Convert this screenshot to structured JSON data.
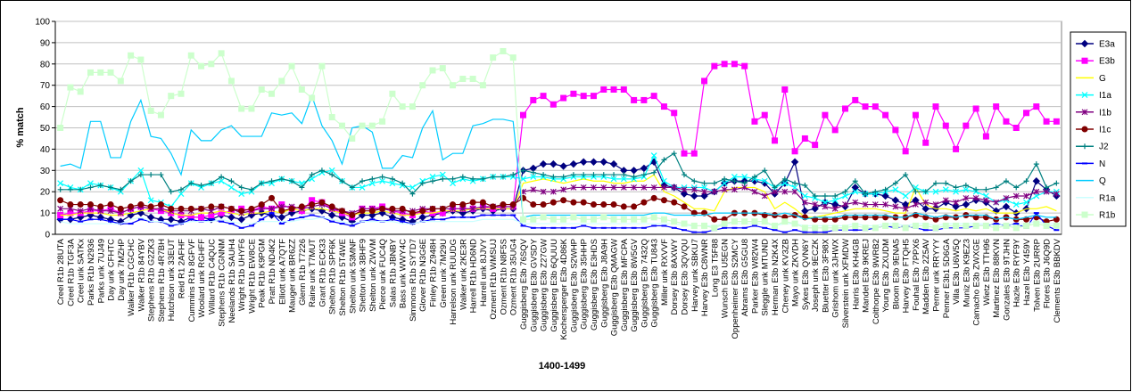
{
  "chart_data": {
    "type": "line",
    "x_label": "1400-1499",
    "y_label": "% match",
    "ylim": [
      0,
      100
    ],
    "yticks": [
      0,
      10,
      20,
      30,
      40,
      50,
      60,
      70,
      80,
      90,
      100
    ],
    "grid": true,
    "legend": "right",
    "categories": [
      "Creel R1b 28UTA",
      "Creel R1b TGF3A",
      "Creel unk SATKx",
      "Parks R1b N2936",
      "Parks unk 7UJ49",
      "Day unk CFHTC",
      "Day unk 7MZHP",
      "Walker R1b CGCHC",
      "Walker R1b 84YBV",
      "Stephens R1b G2ZK3",
      "Stephens R1b 4R7BH",
      "Hutchison unk 33EUT",
      "Reid R1 2AFHF",
      "Cummins R1b 8GFVF",
      "Woolard unk RGHFF",
      "Willard R1b C4QUC",
      "Stephens R1b CGNNM",
      "Neelands R1b SAUH4",
      "Wright R1b UHYF6",
      "Wright R1b EW8CE",
      "Peak R1b K9PGM",
      "Pratt R1b ND4K2",
      "Elliott unk A7QTF",
      "Mauger unk BR6ZZ",
      "Glenn R1b T7226",
      "Raine unk T7MUT",
      "Grant R1b ECK33",
      "Shelton R1b SPF6K",
      "Shelton R1b 5T4WE",
      "Shelton unk 53MNF",
      "Shelton unk 3BHF9",
      "Shelton unk ZWVM",
      "Pierce unk FUC4Q",
      "Salas R1b JBNBY",
      "Bass unk WWY4C",
      "Simmons R1b SYTD7",
      "Glover R1b N3G6E",
      "Finley R1b Z948H",
      "Green unk 7M29U",
      "Harrelson unk RUUDG",
      "Walker unk 2KE3R",
      "Harrell R1b HD6ND",
      "Harrell unk 8JJVY",
      "Ozment R1b WMSUJ",
      "Ozment R1b N8F5S",
      "Ozment R1b 35UG4",
      "Guggisberg E3b 76SQV",
      "Guggisberg E3b GVSDY",
      "Guggisberg E3b Z27GW",
      "Guggisberg E3b 6QUUU",
      "Kochersperger E3b 4D86K",
      "Guggisberg E3b S2WHP",
      "Guggisberg E3b 35HHP",
      "Guggisberg E3b E3HDS",
      "Guggisberg E3b J8A9H",
      "Guggisberg E3b QMAGW",
      "Guggisberg E3b MFCPA",
      "Guggisberg E3b 8W5GV",
      "Guggisberg E3b 7432Q",
      "Guggisberg E3b TU843",
      "Miller unk RXVVF",
      "Dorsey E3b 8AXWY",
      "Dorsey E3b 3QVQU",
      "Harvey unk SBKU7",
      "Harvey E3b C8WNR",
      "Long E3 T5F88",
      "Wunsch E3b U5EGN",
      "Oppenheimer E3b S2MCY",
      "Abrams E3b G5GU8",
      "Parker E3b W82W4",
      "Sleggle unk MTUND",
      "Herman E3b N2K4X",
      "Cheney unk KV3ZB",
      "Mayo unk ZKVDH",
      "Sykes E3b QVN6Y",
      "Joseph unk 9ECZK",
      "Bluetter E3b 3F98X",
      "Grishom unk 3JHWX",
      "Silverstein unk XFMDW",
      "Harris E3b KH4GB",
      "Mandel E3b 9KREJ",
      "Colthorpe E3b 9WRB2",
      "Young E3b ZXUDM",
      "Bloom E3b 9ENA5",
      "Harvey E3b FTQH5",
      "Fouhal E3b 7PPX6",
      "Madden E3b 2Z5AV",
      "Perner unk RRYYY",
      "Penner E3b1 5D6GA",
      "Villa E3b U6W5Q",
      "Muniz E3b K9EZ3",
      "Camacho E3b ZWXGE",
      "Wietz E3b TTH96",
      "Martinez E3b 88KVN",
      "Gonzales E3b 9TJHN",
      "Hazle E3b RYF9Y",
      "Hazel E3b Y459V",
      "Tolven E3b 2URRP",
      "Flores E3b J6Q9D",
      "Clements E3b BBKDV"
    ],
    "series": [
      {
        "name": "E3a",
        "color": "#000080",
        "marker": "diamond",
        "values": [
          7,
          7,
          8,
          9,
          8,
          7,
          6,
          9,
          10,
          8,
          7,
          7,
          6,
          8,
          8,
          7,
          9,
          8,
          7,
          9,
          10,
          9,
          8,
          10,
          11,
          12,
          11,
          9,
          8,
          6,
          9,
          9,
          10,
          8,
          7,
          6,
          8,
          9,
          10,
          11,
          10,
          11,
          12,
          11,
          12,
          12,
          30,
          31,
          33,
          33,
          32,
          33,
          34,
          34,
          34,
          33,
          30,
          30,
          31,
          34,
          23,
          22,
          19,
          18,
          18,
          20,
          24,
          25,
          25,
          25,
          24,
          19,
          24,
          34,
          11,
          12,
          15,
          14,
          13,
          22,
          19,
          19,
          18,
          16,
          14,
          16,
          12,
          12,
          15,
          13,
          14,
          16,
          15,
          11,
          13,
          10,
          12,
          25,
          21,
          18
        ]
      },
      {
        "name": "E3b",
        "color": "#FF00FF",
        "marker": "square",
        "values": [
          9,
          10,
          10,
          11,
          11,
          12,
          10,
          12,
          13,
          12,
          11,
          10,
          9,
          8,
          8,
          9,
          10,
          11,
          12,
          11,
          13,
          12,
          14,
          12,
          11,
          16,
          15,
          12,
          10,
          8,
          12,
          12,
          13,
          11,
          10,
          9,
          11,
          10,
          10,
          12,
          12,
          12,
          13,
          12,
          13,
          13,
          56,
          63,
          65,
          61,
          64,
          66,
          65,
          65,
          68,
          68,
          68,
          63,
          63,
          65,
          60,
          57,
          38,
          38,
          72,
          79,
          80,
          80,
          79,
          53,
          56,
          44,
          68,
          39,
          45,
          42,
          56,
          49,
          59,
          63,
          60,
          60,
          56,
          49,
          39,
          56,
          43,
          60,
          51,
          40,
          51,
          59,
          46,
          60,
          53,
          50,
          57,
          60,
          53,
          53
        ]
      },
      {
        "name": "G",
        "color": "#FFFF00",
        "marker": "none",
        "values": [
          9,
          9,
          10,
          10,
          10,
          9,
          9,
          10,
          11,
          12,
          12,
          10,
          9,
          9,
          10,
          10,
          11,
          10,
          9,
          10,
          10,
          11,
          10,
          12,
          11,
          12,
          12,
          11,
          10,
          9,
          10,
          10,
          11,
          10,
          9,
          9,
          10,
          10,
          11,
          11,
          11,
          12,
          12,
          12,
          12,
          12,
          24,
          25,
          26,
          25,
          24,
          25,
          26,
          25,
          25,
          24,
          24,
          25,
          25,
          28,
          20,
          18,
          15,
          12,
          12,
          11,
          20,
          22,
          22,
          22,
          20,
          12,
          15,
          12,
          8,
          8,
          9,
          10,
          11,
          12,
          12,
          12,
          11,
          10,
          10,
          22,
          14,
          12,
          12,
          11,
          12,
          11,
          12,
          10,
          10,
          10,
          12,
          12,
          13,
          11
        ]
      },
      {
        "name": "I1a",
        "color": "#00FFFF",
        "marker": "x",
        "values": [
          24,
          22,
          21,
          24,
          23,
          22,
          20,
          25,
          30,
          16,
          15,
          13,
          19,
          24,
          22,
          24,
          25,
          22,
          19,
          20,
          24,
          24,
          26,
          25,
          24,
          26,
          29,
          30,
          25,
          22,
          22,
          24,
          25,
          24,
          23,
          22,
          25,
          27,
          28,
          24,
          26,
          25,
          26,
          27,
          27,
          27,
          26,
          27,
          27,
          26,
          26,
          27,
          27,
          27,
          27,
          26,
          26,
          26,
          27,
          37,
          25,
          22,
          22,
          22,
          22,
          20,
          24,
          27,
          27,
          26,
          25,
          22,
          24,
          22,
          18,
          17,
          15,
          16,
          18,
          20,
          19,
          19,
          20,
          21,
          18,
          22,
          20,
          20,
          21,
          20,
          21,
          20,
          18,
          15,
          16,
          14,
          15,
          18,
          20,
          20
        ]
      },
      {
        "name": "I1b",
        "color": "#800080",
        "marker": "star",
        "values": [
          12,
          12,
          11,
          12,
          11,
          11,
          10,
          12,
          13,
          12,
          12,
          11,
          11,
          11,
          12,
          11,
          13,
          12,
          10,
          11,
          12,
          12,
          13,
          13,
          12,
          13,
          14,
          12,
          11,
          10,
          12,
          12,
          12,
          11,
          11,
          11,
          12,
          12,
          12,
          12,
          12,
          12,
          13,
          13,
          13,
          13,
          20,
          21,
          20,
          20,
          21,
          22,
          22,
          22,
          22,
          22,
          22,
          22,
          22,
          22,
          22,
          22,
          21,
          21,
          20,
          20,
          21,
          21,
          22,
          20,
          18,
          20,
          20,
          20,
          15,
          14,
          13,
          12,
          14,
          15,
          14,
          14,
          14,
          13,
          12,
          14,
          15,
          14,
          16,
          15,
          17,
          17,
          16,
          15,
          17,
          18,
          18,
          20,
          20,
          19
        ]
      },
      {
        "name": "I1c",
        "color": "#800000",
        "marker": "circle",
        "values": [
          16,
          14,
          14,
          14,
          13,
          14,
          12,
          13,
          14,
          13,
          14,
          12,
          12,
          12,
          12,
          13,
          13,
          12,
          11,
          12,
          14,
          17,
          11,
          12,
          13,
          14,
          15,
          13,
          11,
          9,
          11,
          11,
          12,
          12,
          12,
          10,
          11,
          12,
          12,
          14,
          14,
          15,
          15,
          13,
          14,
          14,
          17,
          14,
          14,
          15,
          16,
          15,
          15,
          14,
          14,
          14,
          13,
          13,
          15,
          17,
          16,
          15,
          13,
          10,
          10,
          7,
          7,
          10,
          10,
          10,
          9,
          9,
          8,
          9,
          8,
          7,
          7,
          7,
          8,
          8,
          8,
          8,
          8,
          8,
          8,
          9,
          8,
          7,
          8,
          8,
          9,
          8,
          8,
          7,
          8,
          7,
          7,
          8,
          6,
          7
        ]
      },
      {
        "name": "J2",
        "color": "#008080",
        "marker": "plus",
        "values": [
          21,
          21,
          21,
          22,
          23,
          22,
          21,
          25,
          28,
          28,
          28,
          20,
          21,
          24,
          23,
          24,
          27,
          25,
          22,
          21,
          24,
          25,
          26,
          25,
          22,
          28,
          30,
          28,
          25,
          22,
          25,
          26,
          27,
          26,
          24,
          19,
          24,
          25,
          26,
          26,
          27,
          26,
          26,
          27,
          27,
          28,
          30,
          29,
          28,
          27,
          27,
          28,
          28,
          28,
          28,
          28,
          28,
          27,
          28,
          29,
          35,
          38,
          28,
          25,
          24,
          24,
          26,
          25,
          24,
          27,
          30,
          22,
          26,
          24,
          23,
          18,
          18,
          18,
          20,
          25,
          19,
          20,
          21,
          24,
          28,
          20,
          20,
          24,
          24,
          22,
          23,
          21,
          21,
          22,
          25,
          22,
          25,
          33,
          22,
          24
        ]
      },
      {
        "name": "N",
        "color": "#0000FF",
        "marker": "dash",
        "values": [
          7,
          7,
          6,
          7,
          7,
          6,
          5,
          5,
          7,
          6,
          6,
          4,
          5,
          7,
          6,
          7,
          6,
          5,
          3,
          4,
          7,
          10,
          5,
          7,
          8,
          9,
          8,
          6,
          5,
          4,
          6,
          7,
          6,
          7,
          6,
          5,
          6,
          7,
          7,
          8,
          8,
          8,
          9,
          9,
          9,
          9,
          4,
          3,
          3,
          3,
          3,
          3,
          4,
          3,
          3,
          3,
          3,
          3,
          3,
          4,
          4,
          3,
          2,
          1,
          1,
          2,
          3,
          3,
          3,
          4,
          3,
          2,
          1,
          2,
          1,
          1,
          1,
          2,
          2,
          2,
          2,
          3,
          4,
          3,
          4,
          3,
          2,
          2,
          3,
          3,
          3,
          4,
          4,
          5,
          4,
          5,
          3,
          10,
          4,
          2
        ]
      },
      {
        "name": "Q",
        "color": "#00CCFF",
        "marker": "none",
        "values": [
          32,
          33,
          31,
          53,
          53,
          36,
          36,
          53,
          63,
          46,
          45,
          38,
          28,
          49,
          44,
          44,
          49,
          51,
          46,
          46,
          46,
          57,
          56,
          57,
          52,
          65,
          51,
          44,
          33,
          50,
          51,
          48,
          31,
          31,
          37,
          36,
          50,
          58,
          35,
          38,
          38,
          51,
          52,
          54,
          54,
          53,
          8,
          9,
          9,
          9,
          9,
          9,
          9,
          9,
          9,
          9,
          9,
          9,
          9,
          10,
          10,
          9,
          9,
          9,
          9,
          10,
          10,
          10,
          10,
          10,
          10,
          9,
          10,
          9,
          7,
          8,
          8,
          8,
          9,
          9,
          9,
          9,
          9,
          8,
          8,
          10,
          9,
          8,
          9,
          8,
          9,
          9,
          9,
          7,
          8,
          7,
          8,
          9,
          8,
          8
        ]
      },
      {
        "name": "R1a",
        "color": "#CCFFFF",
        "marker": "none",
        "values": [
          6,
          5,
          5,
          5,
          5,
          5,
          5,
          7,
          8,
          6,
          6,
          5,
          5,
          6,
          6,
          6,
          7,
          6,
          5,
          5,
          6,
          6,
          6,
          6,
          7,
          7,
          8,
          7,
          6,
          5,
          6,
          6,
          6,
          6,
          5,
          5,
          6,
          6,
          6,
          6,
          6,
          6,
          7,
          7,
          7,
          7,
          5,
          5,
          5,
          5,
          5,
          5,
          5,
          5,
          5,
          5,
          5,
          5,
          5,
          5,
          5,
          5,
          4,
          4,
          4,
          4,
          5,
          5,
          5,
          5,
          5,
          4,
          5,
          5,
          4,
          4,
          4,
          4,
          4,
          5,
          4,
          4,
          5,
          5,
          4,
          5,
          5,
          4,
          5,
          5,
          5,
          5,
          5,
          4,
          5,
          4,
          5,
          6,
          5,
          5
        ]
      },
      {
        "name": "R1b",
        "color": "#CCFFCC",
        "marker": "square",
        "values": [
          50,
          69,
          67,
          76,
          76,
          76,
          72,
          84,
          82,
          58,
          56,
          65,
          66,
          84,
          79,
          80,
          85,
          72,
          59,
          59,
          68,
          66,
          72,
          79,
          68,
          64,
          79,
          55,
          51,
          45,
          51,
          51,
          53,
          66,
          60,
          60,
          70,
          77,
          78,
          70,
          73,
          73,
          70,
          83,
          86,
          83,
          7,
          7,
          8,
          7,
          7,
          8,
          7,
          7,
          8,
          7,
          7,
          7,
          7,
          8,
          7,
          6,
          5,
          4,
          4,
          3,
          5,
          6,
          6,
          6,
          6,
          4,
          6,
          5,
          3,
          3,
          3,
          3,
          3,
          4,
          3,
          3,
          4,
          4,
          3,
          4,
          4,
          3,
          4,
          4,
          4,
          4,
          4,
          3,
          4,
          3,
          4,
          5,
          4,
          4
        ]
      }
    ]
  }
}
